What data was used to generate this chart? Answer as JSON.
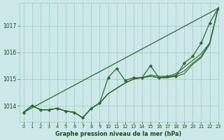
{
  "background_color": "#cce8e8",
  "grid_color": "#9dc8c8",
  "line_color": "#2d6b2d",
  "marker_color": "#2d6b2d",
  "text_color": "#1a4a1a",
  "xlabel": "Graphe pression niveau de la mer (hPa)",
  "xlim": [
    -0.5,
    23
  ],
  "ylim": [
    1013.4,
    1017.85
  ],
  "yticks": [
    1014,
    1015,
    1016,
    1017
  ],
  "xticks": [
    0,
    1,
    2,
    3,
    4,
    5,
    6,
    7,
    8,
    9,
    10,
    11,
    12,
    13,
    14,
    15,
    16,
    17,
    18,
    19,
    20,
    21,
    22,
    23
  ],
  "straight_line": [
    1013.75,
    1017.65
  ],
  "smooth_series_1": [
    1013.75,
    1014.0,
    1013.85,
    1013.85,
    1013.9,
    1013.8,
    1013.75,
    1013.55,
    1013.9,
    1014.1,
    1014.45,
    1014.65,
    1014.85,
    1015.0,
    1015.05,
    1015.1,
    1015.05,
    1015.05,
    1015.1,
    1015.2,
    1015.55,
    1015.8,
    1016.3,
    1017.65
  ],
  "smooth_series_2": [
    1013.75,
    1014.0,
    1013.85,
    1013.85,
    1013.9,
    1013.8,
    1013.75,
    1013.55,
    1013.9,
    1014.1,
    1014.45,
    1014.65,
    1014.85,
    1015.0,
    1015.05,
    1015.1,
    1015.05,
    1015.05,
    1015.15,
    1015.3,
    1015.6,
    1015.85,
    1016.35,
    1017.65
  ],
  "smooth_series_3": [
    1013.75,
    1014.0,
    1013.85,
    1013.85,
    1013.9,
    1013.8,
    1013.75,
    1013.55,
    1013.9,
    1014.1,
    1014.45,
    1014.65,
    1014.85,
    1015.0,
    1015.05,
    1015.15,
    1015.1,
    1015.1,
    1015.2,
    1015.45,
    1015.7,
    1015.95,
    1016.35,
    1017.65
  ],
  "main_series": [
    1013.75,
    1014.0,
    1013.85,
    1013.85,
    1013.9,
    1013.8,
    1013.75,
    1013.55,
    1013.9,
    1014.1,
    1015.05,
    1015.4,
    1014.95,
    1015.05,
    1015.05,
    1015.5,
    1015.05,
    1015.1,
    1015.1,
    1015.6,
    1015.85,
    1016.35,
    1017.1,
    1017.65
  ]
}
